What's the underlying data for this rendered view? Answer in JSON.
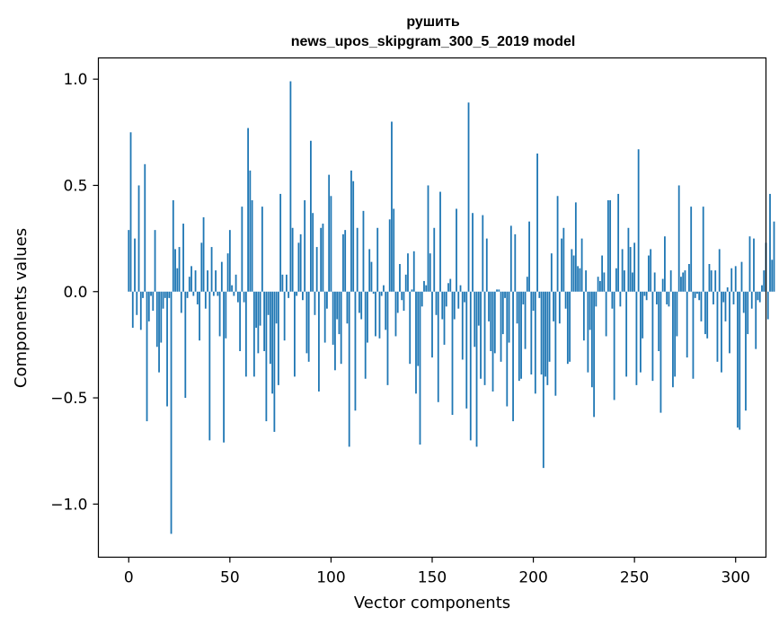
{
  "chart_data": {
    "type": "bar",
    "title_line1": "рушить",
    "title_line2": "news_upos_skipgram_300_5_2019 model",
    "xlabel": "Vector components",
    "ylabel": "Components values",
    "xlim": [
      -15,
      315
    ],
    "ylim": [
      -1.25,
      1.1
    ],
    "x_ticks": [
      0,
      50,
      100,
      150,
      200,
      250,
      300
    ],
    "x_tick_labels": [
      "0",
      "50",
      "100",
      "150",
      "200",
      "250",
      "300"
    ],
    "y_ticks": [
      -1.0,
      -0.5,
      0.0,
      0.5,
      1.0
    ],
    "y_tick_labels": [
      "−1.0",
      "−0.5",
      "0.0",
      "0.5",
      "1.0"
    ],
    "bar_color": "#1f77b4",
    "grid": false,
    "series": [
      {
        "x_start": 0,
        "values": [
          0.29,
          0.75,
          -0.17,
          0.25,
          -0.11,
          0.5,
          -0.18,
          -0.03,
          0.6,
          -0.61,
          -0.14,
          -0.02,
          -0.09,
          0.29,
          -0.26,
          -0.38,
          -0.24,
          -0.08,
          -0.03,
          -0.54,
          -0.03,
          -1.14,
          0.43,
          0.2,
          0.11,
          0.21,
          -0.1,
          0.32,
          -0.5,
          -0.03,
          0.07,
          0.12,
          -0.02,
          0.1,
          -0.06,
          -0.23,
          0.23,
          0.35,
          -0.08,
          0.1,
          -0.7,
          0.21,
          -0.02,
          0.1,
          -0.02,
          -0.21,
          0.14,
          -0.71,
          -0.22,
          0.18,
          0.29,
          0.03,
          -0.02,
          0.08,
          -0.05,
          -0.28,
          0.4,
          -0.05,
          -0.4,
          0.77,
          0.57,
          0.43,
          -0.4,
          -0.17,
          -0.29,
          -0.16,
          0.4,
          -0.28,
          -0.61,
          -0.11,
          -0.34,
          -0.48,
          -0.66,
          -0.15,
          -0.44,
          0.46,
          0.08,
          -0.23,
          0.08,
          -0.03,
          0.99,
          0.3,
          -0.4,
          -0.02,
          0.23,
          0.27,
          -0.04,
          0.43,
          -0.29,
          -0.33,
          0.71,
          0.37,
          -0.11,
          0.21,
          -0.47,
          0.3,
          0.32,
          -0.24,
          -0.08,
          0.55,
          0.45,
          -0.25,
          -0.37,
          -0.13,
          -0.2,
          -0.34,
          0.27,
          0.29,
          -0.15,
          -0.73,
          0.57,
          0.52,
          -0.56,
          0.3,
          -0.1,
          -0.13,
          0.38,
          -0.41,
          -0.24,
          0.2,
          0.14,
          -0.01,
          -0.21,
          0.3,
          -0.22,
          -0.02,
          0.03,
          -0.18,
          -0.44,
          0.34,
          0.8,
          0.39,
          -0.21,
          -0.1,
          0.13,
          -0.04,
          -0.09,
          0.08,
          0.18,
          -0.34,
          0.01,
          0.19,
          -0.48,
          -0.35,
          -0.72,
          -0.07,
          0.05,
          0.03,
          0.5,
          0.18,
          -0.31,
          0.3,
          -0.11,
          -0.52,
          0.47,
          -0.13,
          -0.25,
          -0.07,
          0.04,
          0.06,
          -0.58,
          -0.13,
          0.39,
          -0.08,
          0.03,
          -0.32,
          -0.05,
          -0.55,
          0.89,
          -0.7,
          0.37,
          -0.26,
          -0.73,
          -0.16,
          -0.41,
          0.36,
          -0.44,
          0.25,
          -0.14,
          -0.28,
          -0.47,
          -0.29,
          0.01,
          0.01,
          -0.33,
          -0.2,
          -0.03,
          -0.54,
          -0.24,
          0.31,
          -0.61,
          0.27,
          -0.15,
          -0.42,
          -0.41,
          -0.06,
          -0.27,
          0.07,
          0.33,
          -0.39,
          -0.09,
          -0.48,
          0.65,
          -0.03,
          -0.39,
          -0.83,
          -0.4,
          -0.44,
          -0.33,
          0.18,
          -0.14,
          -0.49,
          0.45,
          -0.15,
          0.25,
          0.3,
          -0.08,
          -0.34,
          -0.33,
          0.2,
          0.17,
          0.42,
          0.12,
          0.11,
          0.25,
          -0.23,
          0.1,
          -0.38,
          -0.18,
          -0.45,
          -0.59,
          -0.07,
          0.07,
          0.05,
          0.17,
          0.09,
          -0.21,
          0.43,
          0.43,
          -0.08,
          -0.51,
          0.11,
          0.46,
          -0.07,
          0.2,
          0.1,
          -0.4,
          0.3,
          0.21,
          0.09,
          0.23,
          -0.44,
          0.67,
          -0.38,
          -0.22,
          -0.02,
          -0.04,
          0.17,
          0.2,
          -0.42,
          0.09,
          -0.06,
          -0.28,
          -0.57,
          0.06,
          0.26,
          -0.06,
          -0.07,
          0.1,
          -0.45,
          -0.4,
          -0.21,
          0.5,
          0.07,
          0.09,
          0.1,
          -0.31,
          0.13,
          0.4,
          -0.41,
          -0.03,
          -0.01,
          -0.04,
          -0.14,
          0.4,
          -0.2,
          -0.22,
          0.13,
          0.1,
          -0.06,
          0.1,
          -0.33,
          0.2,
          -0.38,
          -0.05,
          -0.14,
          0.02,
          -0.29,
          0.11,
          -0.06,
          0.12,
          -0.64,
          -0.65,
          0.14,
          -0.1,
          -0.56,
          -0.2,
          0.26,
          -0.08,
          0.25,
          -0.27,
          -0.04,
          -0.05,
          0.03,
          0.1,
          0.23,
          -0.13,
          0.46,
          0.15,
          0.33
        ]
      }
    ]
  }
}
